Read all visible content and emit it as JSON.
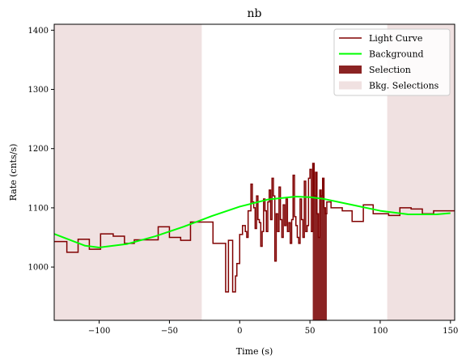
{
  "chart_data": {
    "type": "line",
    "title": "nb",
    "xlabel": "Time (s)",
    "ylabel": "Rate (cnts/s)",
    "xlim": [
      -132,
      153
    ],
    "ylim": [
      910,
      1410
    ],
    "x_ticks": [
      -100,
      -50,
      0,
      50,
      100,
      150
    ],
    "y_ticks": [
      1000,
      1100,
      1200,
      1300,
      1400
    ],
    "x_tick_labels": [
      "−100",
      "−50",
      "0",
      "50",
      "100",
      "150"
    ],
    "y_tick_labels": [
      "1000",
      "1100",
      "1200",
      "1300",
      "1400"
    ],
    "grid": false,
    "legend_position": "top-right",
    "legend": [
      {
        "label": "Light Curve",
        "kind": "line",
        "color": "#800000"
      },
      {
        "label": "Background",
        "kind": "line",
        "color": "#00ff00"
      },
      {
        "label": "Selection",
        "kind": "patch",
        "color": "#8b2323"
      },
      {
        "label": "Bkg. Selections",
        "kind": "patch",
        "color": "#f0e1e1"
      }
    ],
    "bkg_selections": [
      [
        -132,
        -27
      ],
      [
        105,
        153
      ]
    ],
    "selection": [
      52,
      62
    ],
    "background_poly": [
      [
        -132,
        1056
      ],
      [
        -110,
        1036
      ],
      [
        -100,
        1033
      ],
      [
        -80,
        1039
      ],
      [
        -60,
        1052
      ],
      [
        -40,
        1068
      ],
      [
        -20,
        1086
      ],
      [
        0,
        1102
      ],
      [
        20,
        1114
      ],
      [
        40,
        1119
      ],
      [
        50,
        1118
      ],
      [
        60,
        1115
      ],
      [
        80,
        1105
      ],
      [
        100,
        1095
      ],
      [
        120,
        1089
      ],
      [
        140,
        1089
      ],
      [
        150,
        1091
      ]
    ],
    "light_curve_steps": [
      [
        -132,
        1043
      ],
      [
        -123,
        1025
      ],
      [
        -115,
        1047
      ],
      [
        -107,
        1030
      ],
      [
        -99,
        1056
      ],
      [
        -90,
        1052
      ],
      [
        -82,
        1040
      ],
      [
        -75,
        1046
      ],
      [
        -58,
        1068
      ],
      [
        -50,
        1050
      ],
      [
        -42,
        1045
      ],
      [
        -35,
        1076
      ],
      [
        -20,
        1076
      ],
      [
        -19,
        1040
      ],
      [
        -10,
        958
      ],
      [
        -8,
        1045
      ],
      [
        -5,
        958
      ],
      [
        -3,
        985
      ],
      [
        -2,
        1006
      ],
      [
        0,
        1055
      ],
      [
        2,
        1070
      ],
      [
        4,
        1060
      ],
      [
        5,
        1050
      ],
      [
        6,
        1095
      ],
      [
        8,
        1140
      ],
      [
        9,
        1110
      ],
      [
        10,
        1100
      ],
      [
        11,
        1065
      ],
      [
        12,
        1120
      ],
      [
        13,
        1080
      ],
      [
        14,
        1075
      ],
      [
        15,
        1035
      ],
      [
        16,
        1060
      ],
      [
        17,
        1115
      ],
      [
        18,
        1095
      ],
      [
        19,
        1060
      ],
      [
        20,
        1110
      ],
      [
        21,
        1130
      ],
      [
        22,
        1080
      ],
      [
        23,
        1150
      ],
      [
        24,
        1120
      ],
      [
        25,
        1010
      ],
      [
        26,
        1090
      ],
      [
        27,
        1060
      ],
      [
        28,
        1135
      ],
      [
        29,
        1080
      ],
      [
        30,
        1050
      ],
      [
        31,
        1105
      ],
      [
        32,
        1070
      ],
      [
        33,
        1115
      ],
      [
        34,
        1060
      ],
      [
        35,
        1075
      ],
      [
        36,
        1040
      ],
      [
        37,
        1080
      ],
      [
        38,
        1155
      ],
      [
        39,
        1085
      ],
      [
        40,
        1070
      ],
      [
        41,
        1050
      ],
      [
        42,
        1040
      ],
      [
        43,
        1115
      ],
      [
        44,
        1080
      ],
      [
        45,
        1050
      ],
      [
        46,
        1145
      ],
      [
        47,
        1060
      ],
      [
        48,
        1070
      ],
      [
        49,
        1150
      ],
      [
        50,
        1165
      ],
      [
        51,
        1060
      ],
      [
        52,
        1175
      ],
      [
        53,
        1120
      ],
      [
        54,
        1160
      ],
      [
        55,
        1090
      ],
      [
        56,
        1050
      ],
      [
        57,
        1130
      ],
      [
        58,
        1120
      ],
      [
        59,
        1150
      ],
      [
        60,
        1100
      ],
      [
        61,
        1090
      ],
      [
        62,
        1110
      ],
      [
        65,
        1100
      ],
      [
        73,
        1095
      ],
      [
        80,
        1077
      ],
      [
        88,
        1105
      ],
      [
        95,
        1090
      ],
      [
        106,
        1087
      ],
      [
        114,
        1100
      ],
      [
        122,
        1098
      ],
      [
        130,
        1090
      ],
      [
        138,
        1095
      ],
      [
        153,
        1095
      ]
    ]
  }
}
